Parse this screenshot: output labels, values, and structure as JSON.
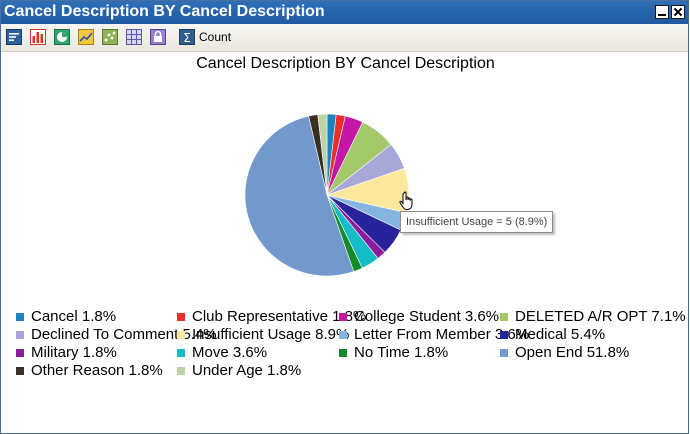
{
  "window": {
    "title": "Cancel Description BY Cancel Description",
    "title_bar_color": "#1d5aa0"
  },
  "toolbar": {
    "icons": [
      "legend-menu-icon",
      "bar-chart-icon",
      "pie-chart-icon",
      "line-chart-icon",
      "scatter-chart-icon",
      "table-grid-icon",
      "lock-icon"
    ],
    "count_label": "Count"
  },
  "tooltip": {
    "text": "Insufficient Usage = 5 (8.9%)"
  },
  "chart_data": {
    "type": "pie",
    "title": "Cancel Description BY Cancel Description",
    "start_angle_deg": 0,
    "direction": "clockwise",
    "slices": [
      {
        "label": "Cancel",
        "percent": 1.8,
        "color": "#1f82c0",
        "legend_text": "Cancel 1.8%"
      },
      {
        "label": "Club Representative",
        "percent": 1.8,
        "color": "#e8302a",
        "legend_text": "Club Representative 1.8%"
      },
      {
        "label": "College Student",
        "percent": 3.6,
        "color": "#c417a5",
        "legend_text": "College Student 3.6%"
      },
      {
        "label": "DELETED A/R OPT",
        "percent": 7.1,
        "color": "#a4c96a",
        "legend_text": "DELETED A/R OPT 7.1%"
      },
      {
        "label": "Declined To Comment",
        "percent": 5.4,
        "color": "#a8a8d8",
        "legend_text": "Declined To Comment 5.4%"
      },
      {
        "label": "Insufficient Usage",
        "percent": 8.9,
        "color": "#fce89c",
        "legend_text": "Insufficient Usage 8.9%"
      },
      {
        "label": "Letter From Member",
        "percent": 3.6,
        "color": "#86b4e0",
        "legend_text": "Letter From Member 3.6%"
      },
      {
        "label": "Medical",
        "percent": 5.4,
        "color": "#28239a",
        "legend_text": "Medical 5.4%"
      },
      {
        "label": "Military",
        "percent": 1.8,
        "color": "#8c1d9e",
        "legend_text": "Military 1.8%"
      },
      {
        "label": "Move",
        "percent": 3.6,
        "color": "#14bcc8",
        "legend_text": "Move 3.6%"
      },
      {
        "label": "No Time",
        "percent": 1.8,
        "color": "#138a2c",
        "legend_text": "No Time 1.8%"
      },
      {
        "label": "Open End",
        "percent": 51.8,
        "color": "#7399cc",
        "legend_text": "Open End 51.8%"
      },
      {
        "label": "Other Reason",
        "percent": 1.8,
        "color": "#3a2f25",
        "legend_text": "Other Reason 1.8%"
      },
      {
        "label": "Under Age",
        "percent": 1.8,
        "color": "#bcd4a8",
        "legend_text": "Under Age 1.8%"
      }
    ],
    "legend_placement": "bottom"
  }
}
